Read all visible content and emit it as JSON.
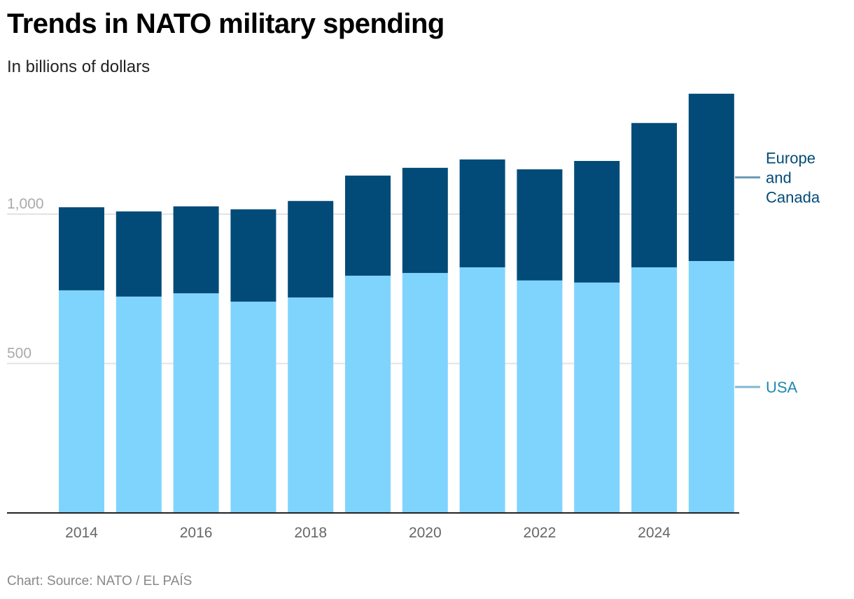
{
  "title": "Trends in NATO military spending",
  "subtitle": "In billions of dollars",
  "source": "Chart: Source: NATO / EL PAÍS",
  "chart_data": {
    "type": "bar",
    "stacked": true,
    "categories": [
      "2014",
      "2015",
      "2016",
      "2017",
      "2018",
      "2019",
      "2020",
      "2021",
      "2022",
      "2023",
      "2024",
      "2025"
    ],
    "x_tick_labels": [
      "2014",
      "2016",
      "2018",
      "2020",
      "2022",
      "2024"
    ],
    "y_tick_labels": [
      "500",
      "1,000"
    ],
    "y_ticks": [
      500,
      1000
    ],
    "ylim": [
      0,
      1420
    ],
    "grid": true,
    "series": [
      {
        "name": "USA",
        "color": "#7fd4fe",
        "label_color": "#1d89b0",
        "values": [
          745,
          724,
          735,
          707,
          721,
          794,
          803,
          822,
          778,
          771,
          822,
          843
        ]
      },
      {
        "name": "Europe and Canada",
        "label_lines": [
          "Europe",
          "and",
          "Canada"
        ],
        "color": "#024b78",
        "label_color": "#024b78",
        "values": [
          278,
          285,
          291,
          309,
          323,
          335,
          352,
          361,
          372,
          407,
          483,
          560
        ]
      }
    ]
  }
}
